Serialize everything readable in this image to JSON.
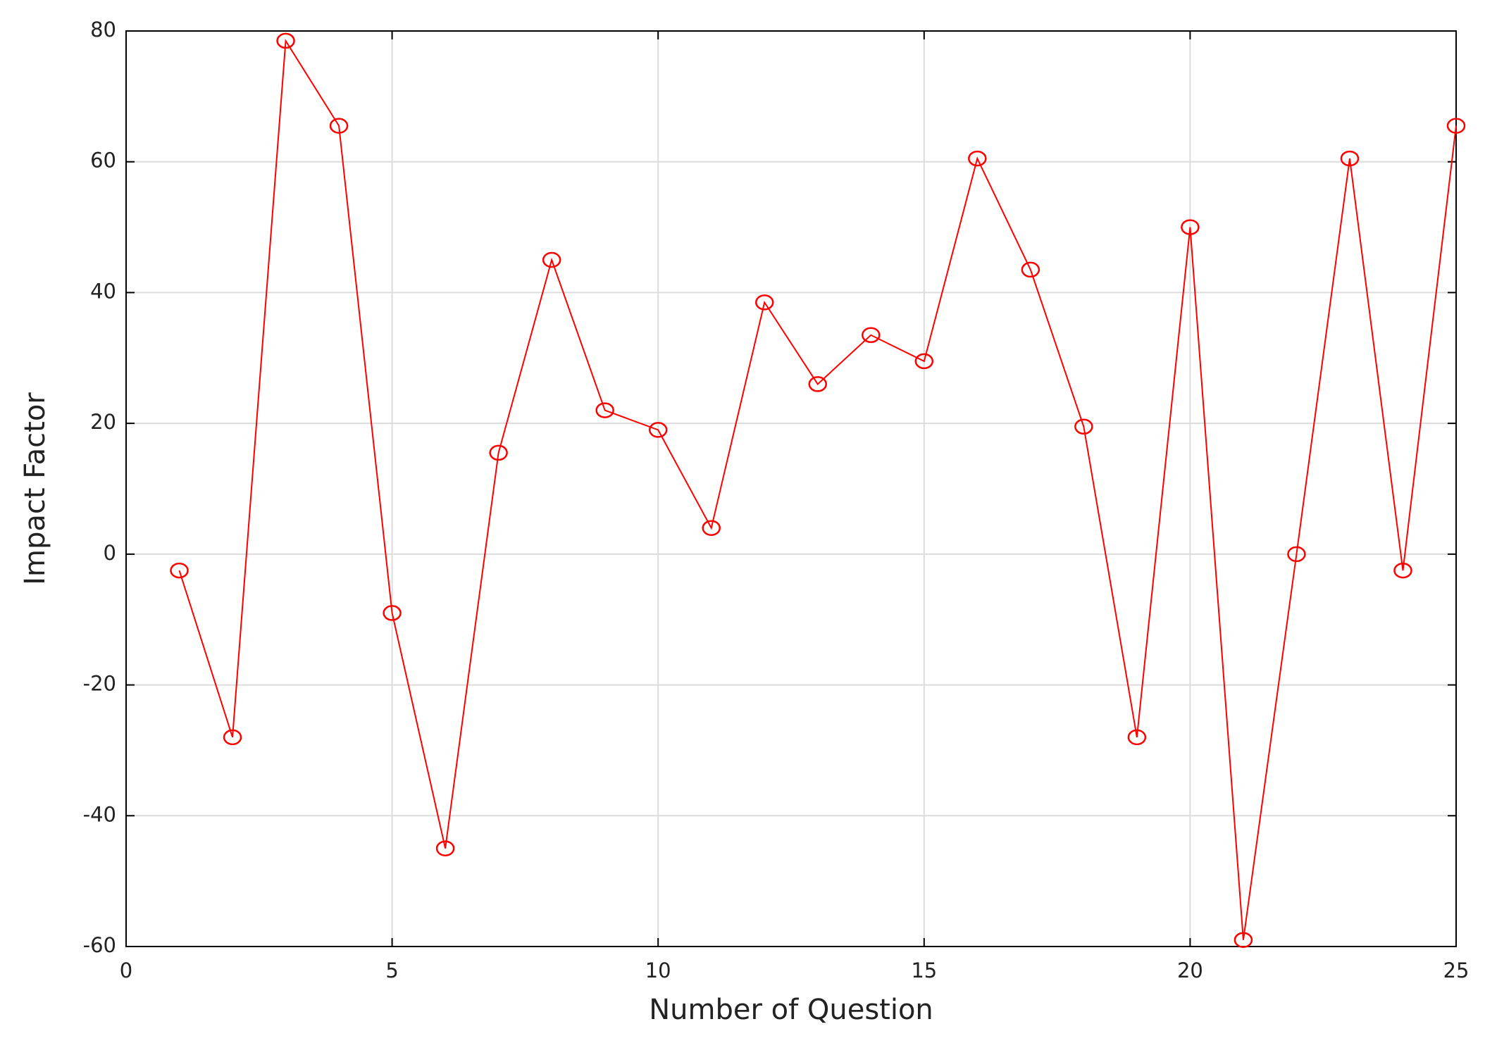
{
  "chart_data": {
    "type": "line",
    "x_label": "Number of Question",
    "y_label": "Impact Factor",
    "x": [
      1,
      2,
      3,
      4,
      5,
      6,
      7,
      8,
      9,
      10,
      11,
      12,
      13,
      14,
      15,
      16,
      17,
      18,
      19,
      20,
      21,
      22,
      23,
      24,
      25
    ],
    "series": [
      {
        "color": "#ff0000",
        "values": [
          -2.5,
          -28,
          78.5,
          65.5,
          -9,
          -45,
          15.5,
          45,
          22,
          19,
          4,
          38.5,
          26,
          33.5,
          29.5,
          60.5,
          43.5,
          19.5,
          -28,
          50,
          -59,
          0,
          60.5,
          -2.5,
          65.5
        ]
      }
    ],
    "xlim": [
      0,
      25
    ],
    "xticks": [
      0,
      5,
      10,
      15,
      20,
      25
    ],
    "ylim": [
      -60,
      80
    ],
    "yticks": [
      -60,
      -40,
      -20,
      0,
      20,
      40,
      60,
      80
    ],
    "grid": true,
    "marker": "circle"
  }
}
